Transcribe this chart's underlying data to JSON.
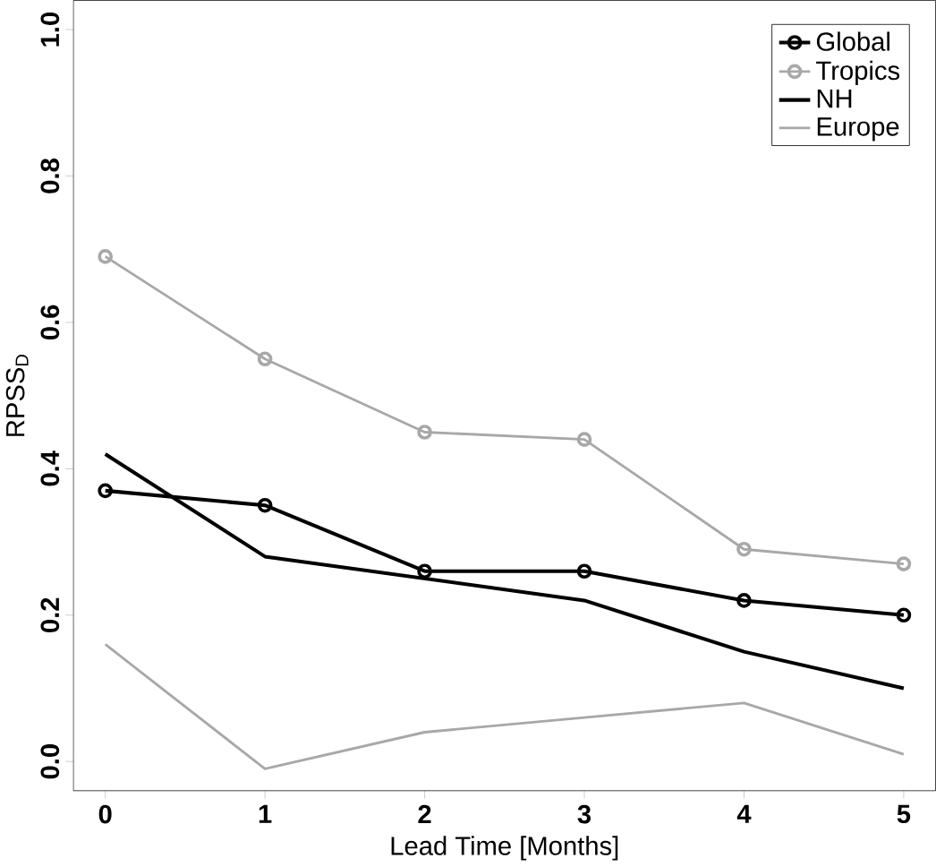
{
  "chart_data": {
    "type": "line",
    "xlabel": "Lead Time [Months]",
    "ylabel": "RPSS$_{D}$",
    "x": [
      0,
      1,
      2,
      3,
      4,
      5
    ],
    "xlim": [
      -0.2,
      5.2
    ],
    "ylim": [
      -0.04,
      1.04
    ],
    "xticks": [
      0,
      1,
      2,
      3,
      4,
      5
    ],
    "yticks": [
      {
        "value": 0,
        "label": "0.0"
      },
      0.2,
      0.4,
      0.6,
      0.8,
      {
        "value": 1,
        "label": "1.0"
      }
    ],
    "grid": false,
    "legend": "top right",
    "series": [
      {
        "name": "Global",
        "color": "#000000",
        "marker": "circle",
        "values": [
          0.37,
          0.35,
          0.26,
          0.26,
          0.22,
          0.2
        ]
      },
      {
        "name": "Tropics",
        "color": "#a8a8a8",
        "marker": "circle",
        "values": [
          0.69,
          0.55,
          0.45,
          0.44,
          0.29,
          0.27
        ]
      },
      {
        "name": "NH",
        "color": "#000000",
        "marker": "none",
        "values": [
          0.42,
          0.28,
          0.25,
          0.22,
          0.15,
          0.1
        ]
      },
      {
        "name": "Europe",
        "color": "#a8a8a8",
        "marker": "none",
        "values": [
          0.16,
          -0.01,
          0.04,
          0.06,
          0.08,
          0.01
        ]
      }
    ]
  }
}
